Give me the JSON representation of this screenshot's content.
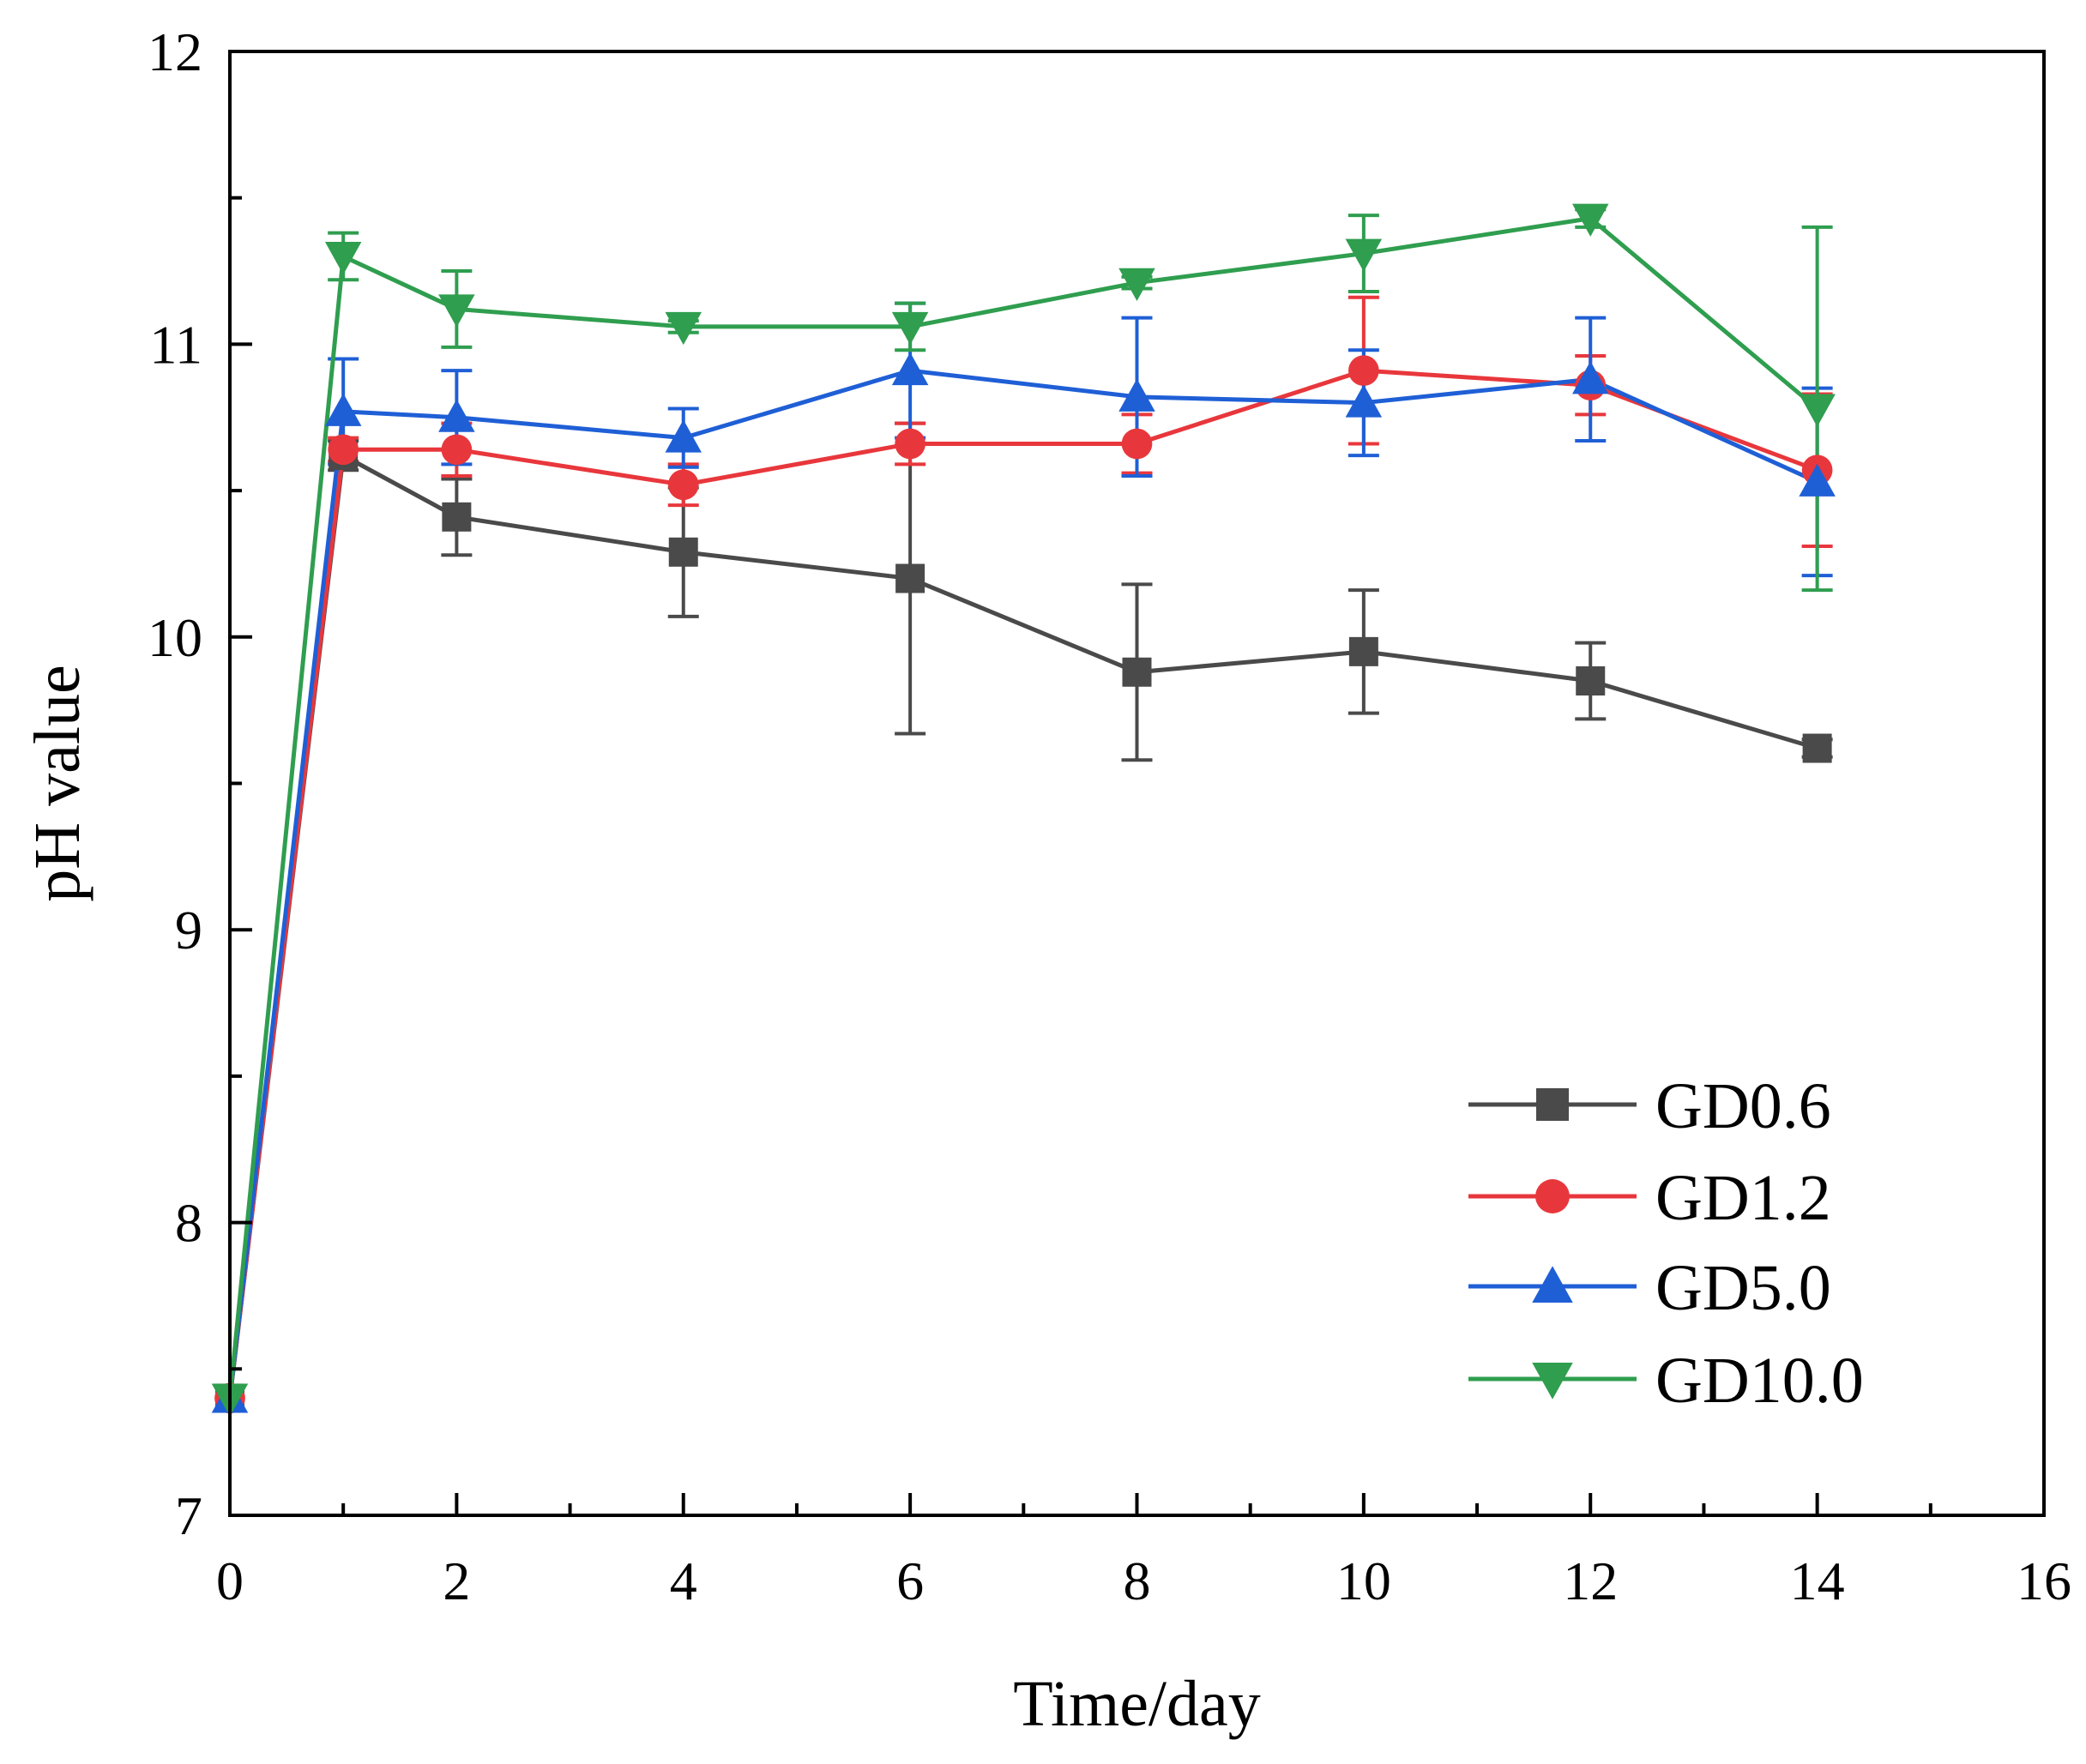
{
  "chart_data": {
    "type": "line",
    "title": "",
    "xlabel": "Time/day",
    "ylabel": "pH value",
    "xlim": [
      0,
      16
    ],
    "ylim": [
      7,
      12
    ],
    "x_ticks": [
      "0",
      "2",
      "4",
      "6",
      "8",
      "10",
      "12",
      "14",
      "16"
    ],
    "y_ticks": [
      "7",
      "8",
      "9",
      "10",
      "11",
      "12"
    ],
    "grid": false,
    "legend_position": "bottom-right",
    "series": [
      {
        "name": "GD0.6",
        "color": "#4a4a4a",
        "marker": "square",
        "x": [
          0,
          1,
          2,
          4,
          6,
          8,
          10,
          12,
          14
        ],
        "y": [
          7.4,
          10.62,
          10.41,
          10.29,
          10.2,
          9.88,
          9.95,
          9.85,
          9.62
        ],
        "err": [
          0,
          0.05,
          0.13,
          0.22,
          0.53,
          0.3,
          0.21,
          0.13,
          0.03
        ]
      },
      {
        "name": "GD1.2",
        "color": "#e8373c",
        "marker": "circle",
        "x": [
          0,
          1,
          2,
          4,
          6,
          8,
          10,
          12,
          14
        ],
        "y": [
          7.4,
          10.64,
          10.64,
          10.52,
          10.66,
          10.66,
          10.91,
          10.86,
          10.57
        ],
        "err": [
          0,
          0.04,
          0.09,
          0.07,
          0.07,
          0.1,
          0.25,
          0.1,
          0.26
        ]
      },
      {
        "name": "GD5.0",
        "color": "#1f5fd6",
        "marker": "triangle-up",
        "x": [
          0,
          1,
          2,
          4,
          6,
          8,
          10,
          12,
          14
        ],
        "y": [
          7.4,
          10.77,
          10.75,
          10.68,
          10.91,
          10.82,
          10.8,
          10.88,
          10.53
        ],
        "err": [
          0,
          0.18,
          0.16,
          0.1,
          0.23,
          0.27,
          0.18,
          0.21,
          0.32
        ]
      },
      {
        "name": "GD10.0",
        "color": "#2f9e4f",
        "marker": "triangle-down",
        "x": [
          0,
          1,
          2,
          4,
          6,
          8,
          10,
          12,
          14
        ],
        "y": [
          7.4,
          11.3,
          11.12,
          11.06,
          11.06,
          11.21,
          11.31,
          11.43,
          10.78
        ],
        "err": [
          0,
          0.08,
          0.13,
          0.02,
          0.08,
          0.02,
          0.13,
          0.03,
          0.62
        ]
      }
    ]
  }
}
